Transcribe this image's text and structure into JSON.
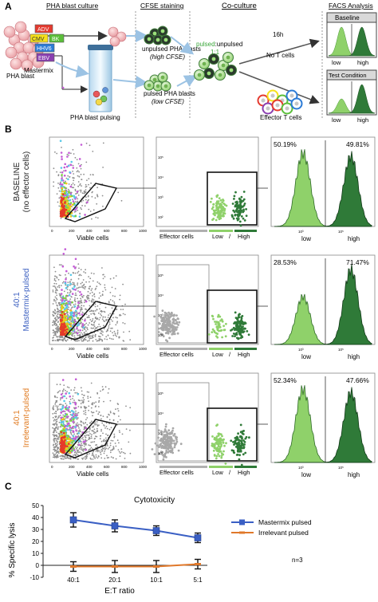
{
  "panel_a": {
    "letter": "A",
    "headers": {
      "pha_culture": "PHA blast culture",
      "cfse": "CFSE staining",
      "coculture": "Co-culture",
      "facs": "FACS Analysis"
    },
    "pha_blast": "PHA blast",
    "antigens": [
      {
        "label": "ADV",
        "color": "#e43a2f"
      },
      {
        "label": "CMV",
        "color": "#f6e11b"
      },
      {
        "label": "BK",
        "color": "#5bbf3a"
      },
      {
        "label": "HHV6",
        "color": "#2c7bd6"
      },
      {
        "label": "EBV",
        "color": "#8a3fb0"
      }
    ],
    "mastermix": "Mastermix",
    "pulsing": "PHA blast pulsing",
    "unpulsed_title": "unpulsed PHA blasts",
    "unpulsed_sub": "(high CFSE)",
    "pulsed_title": "pulsed PHA blasts",
    "pulsed_sub": "(low CFSE)",
    "ratio_pulsed": "pulsed",
    "ratio_sep": ":",
    "ratio_unpulsed": "unpulsed",
    "ratio_value": "1:1",
    "time": "16h",
    "no_t": "No T cells",
    "effector": "Effector T cells",
    "baseline": "Baseline",
    "test": "Test Condition",
    "low": "low",
    "high": "high",
    "colors": {
      "light_green": "#8fd16a",
      "dark_green": "#2f7a38",
      "pulsed_green": "#3aa63a"
    }
  },
  "panel_b": {
    "letter": "B",
    "rows": [
      {
        "label_1": "BASELINE",
        "label_2": "(no effector cells)",
        "color": "#222222",
        "low_pct": "50.19%",
        "high_pct": "49.81%"
      },
      {
        "label_1": "40:1",
        "label_2": "Mastermix-pulsed",
        "color": "#3b5fc0",
        "low_pct": "28.53%",
        "high_pct": "71.47%"
      },
      {
        "label_1": "40:1",
        "label_2": "Irrelevant-pulsed",
        "color": "#e07a20",
        "low_pct": "52.34%",
        "high_pct": "47.66%"
      }
    ],
    "viable": "Viable cells",
    "effector_cells": "Effector cells",
    "low": "Low",
    "slash": "/",
    "high": "High",
    "hist_low": "low",
    "hist_high": "high",
    "decades": [
      "10²",
      "10³",
      "10⁴",
      "10⁵"
    ],
    "xticks": [
      "0",
      "200",
      "400",
      "600",
      "800",
      "1000"
    ]
  },
  "panel_c": {
    "letter": "C",
    "n_label": "n=3"
  },
  "chart_data": {
    "type": "line",
    "title": "Cytotoxicity",
    "xlabel": "E:T ratio",
    "ylabel": "% Specific lysis",
    "categories": [
      "40:1",
      "20:1",
      "10:1",
      "5:1"
    ],
    "yticks": [
      "-10",
      "0",
      "10",
      "20",
      "30",
      "40",
      "50"
    ],
    "ylim": [
      -10,
      50
    ],
    "series": [
      {
        "name": "Mastermix pulsed",
        "color": "#3a5fc4",
        "values": [
          38,
          33,
          29,
          23
        ],
        "errors": [
          6,
          5,
          4,
          4
        ]
      },
      {
        "name": "Irrelevant pulsed",
        "color": "#e0782a",
        "values": [
          -1,
          -1,
          -1,
          1
        ],
        "errors": [
          4,
          5,
          5,
          4
        ]
      }
    ],
    "grid": false,
    "legend": "right"
  }
}
